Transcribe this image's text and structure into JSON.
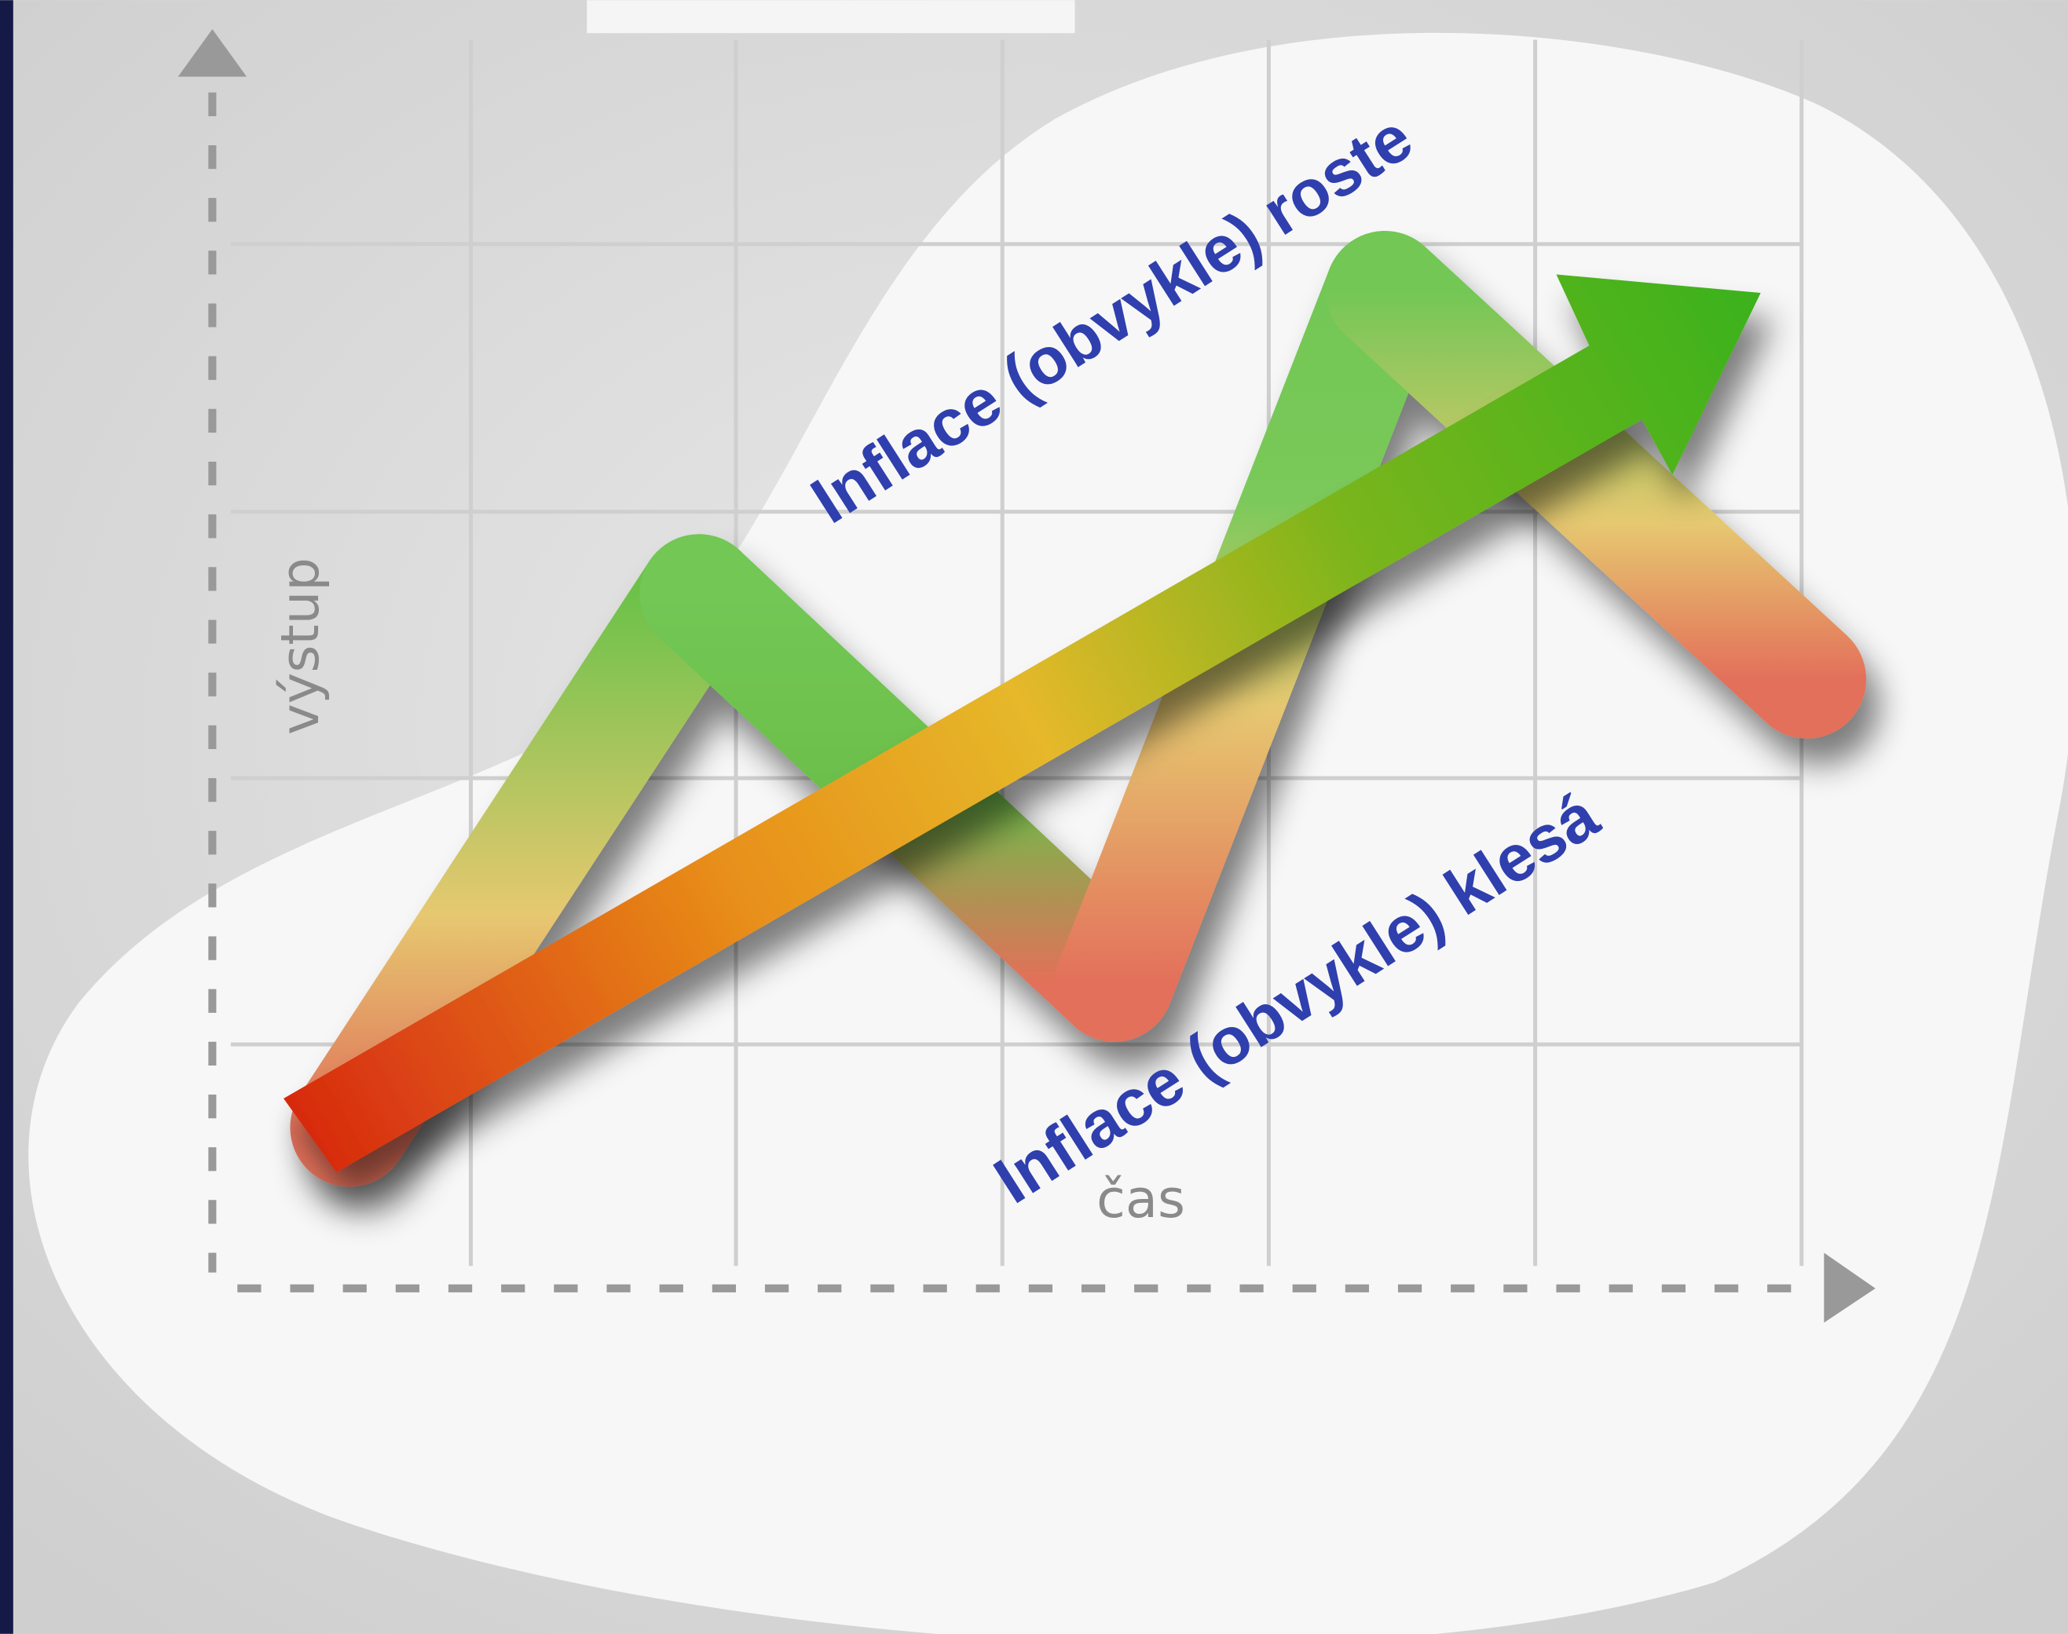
{
  "axes": {
    "y_label": "výstup",
    "x_label": "čas"
  },
  "annotations": [
    "Inflace (obvykle) roste",
    "Inflace (obvykle) klesá"
  ]
}
